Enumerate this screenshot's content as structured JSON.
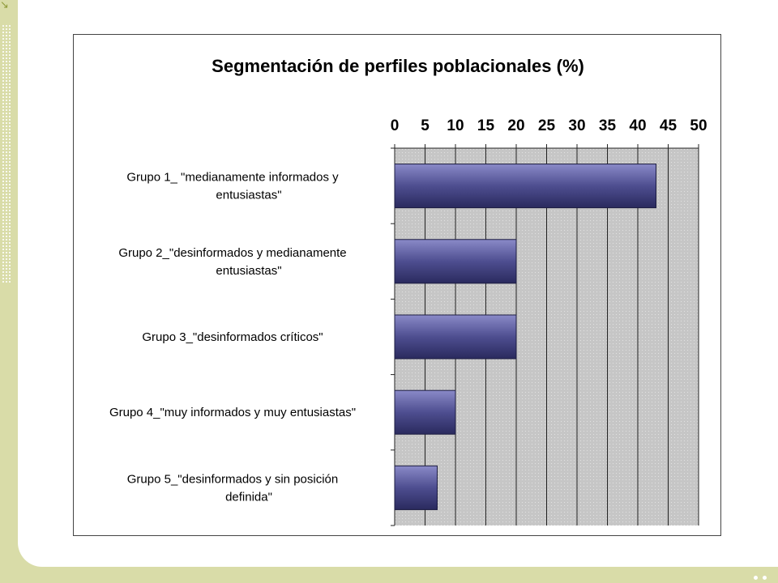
{
  "slide": {
    "corner_icon": "arrow-icon",
    "background_color": "#d9dca8"
  },
  "chart_data": {
    "type": "bar",
    "orientation": "horizontal",
    "title": "Segmentación de perfiles poblacionales (%)",
    "xlabel": "",
    "ylabel": "",
    "xlim": [
      0,
      50
    ],
    "ticks": [
      "0",
      "5",
      "10",
      "15",
      "20",
      "25",
      "30",
      "35",
      "40",
      "45",
      "50"
    ],
    "tick_values": [
      0,
      5,
      10,
      15,
      20,
      25,
      30,
      35,
      40,
      45,
      50
    ],
    "axis_position": "top",
    "grid": true,
    "categories": [
      [
        "Grupo 1_ \"medianamente informados y",
        "entusiastas\""
      ],
      [
        "Grupo 2_\"desinformados y medianamente",
        "entusiastas\""
      ],
      [
        "Grupo 3_\"desinformados críticos\""
      ],
      [
        "Grupo 4_\"muy informados y muy entusiastas\""
      ],
      [
        "Grupo 5_\"desinformados y sin posición",
        "definida\""
      ]
    ],
    "values": [
      43,
      20,
      20,
      10,
      7
    ],
    "bar_color": "#5a5a9a",
    "plot_background": "#c8c8c8"
  }
}
